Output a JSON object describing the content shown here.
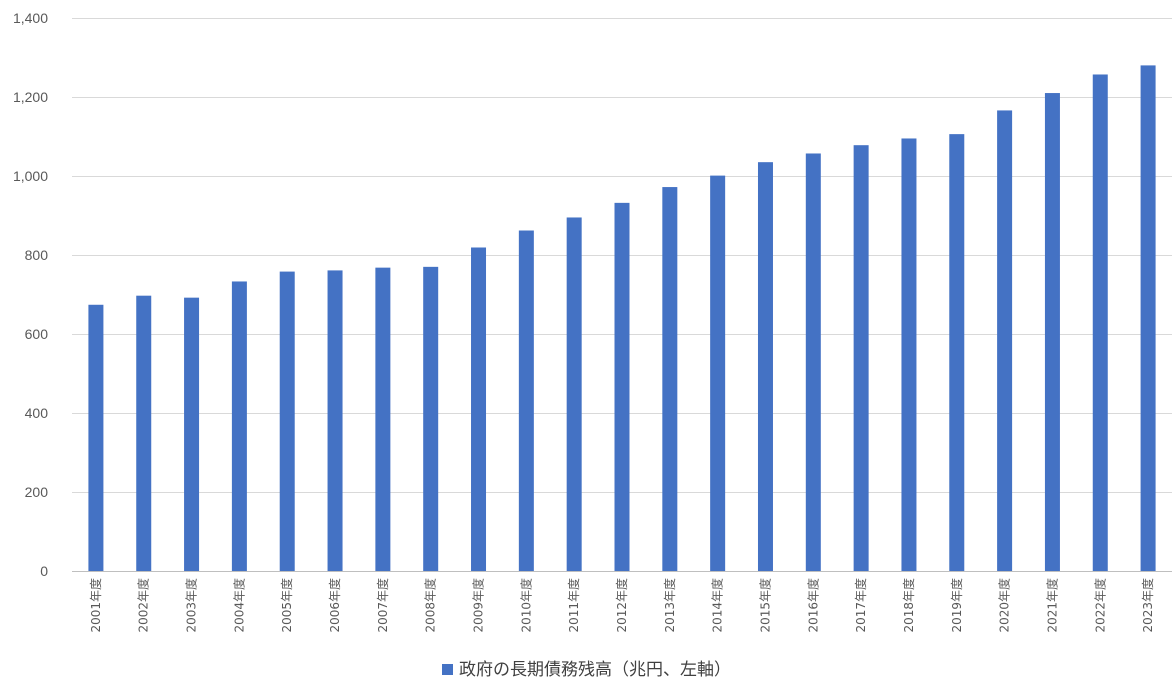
{
  "chart_data": {
    "type": "bar",
    "categories": [
      "2001年度",
      "2002年度",
      "2003年度",
      "2004年度",
      "2005年度",
      "2006年度",
      "2007年度",
      "2008年度",
      "2009年度",
      "2010年度",
      "2011年度",
      "2012年度",
      "2013年度",
      "2014年度",
      "2015年度",
      "2016年度",
      "2017年度",
      "2018年度",
      "2019年度",
      "2020年度",
      "2021年度",
      "2022年度",
      "2023年度"
    ],
    "series": [
      {
        "name": "政府の長期債務残高（兆円、左軸）",
        "values": [
          674,
          697,
          692,
          733,
          758,
          761,
          768,
          770,
          819,
          862,
          895,
          932,
          972,
          1001,
          1035,
          1057,
          1078,
          1095,
          1106,
          1166,
          1210,
          1257,
          1280
        ]
      }
    ],
    "ylim": [
      0,
      1400
    ],
    "yticks": [
      0,
      200,
      400,
      600,
      800,
      1000,
      1200,
      1400
    ],
    "ytick_labels": [
      "0",
      "200",
      "400",
      "600",
      "800",
      "1,000",
      "1,200",
      "1,400"
    ],
    "grid": true,
    "legend_position": "bottom",
    "colors": {
      "bar": "#4472C4",
      "grid": "#D9D9D9",
      "text": "#595959"
    }
  }
}
